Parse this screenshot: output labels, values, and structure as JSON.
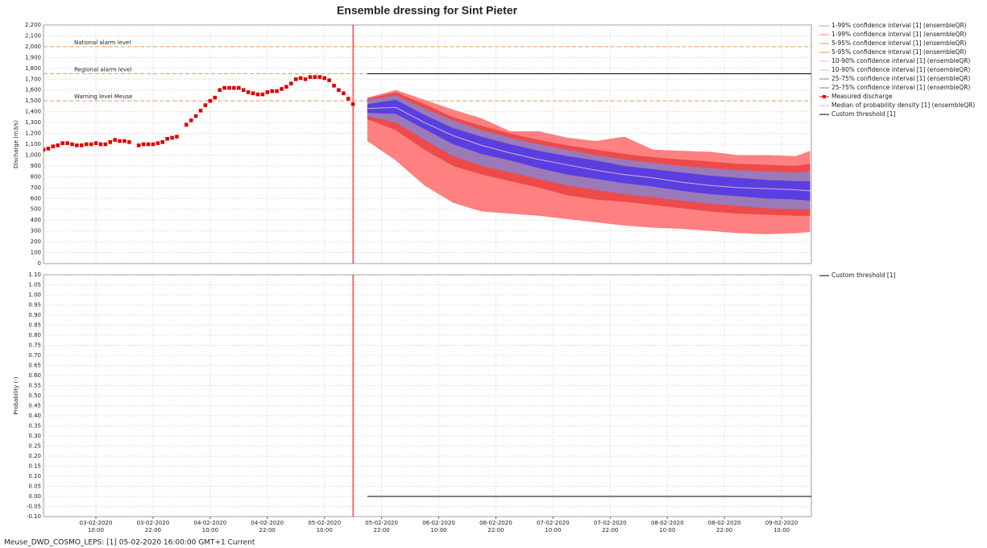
{
  "chart_data": [
    {
      "type": "line",
      "title": "Ensemble dressing for Sint Pieter",
      "ylabel": "Discharge (m3/s)",
      "xlim": [
        "2020-02-02T23:00",
        "2020-02-09T16:15"
      ],
      "ylim": [
        0,
        2200
      ],
      "yticks": [
        0,
        100,
        200,
        300,
        400,
        500,
        600,
        700,
        800,
        900,
        {
          "value": 1000,
          "label": "1,000"
        },
        {
          "value": 1100,
          "label": "1,100"
        },
        {
          "value": 1200,
          "label": "1,200"
        },
        {
          "value": 1300,
          "label": "1,300"
        },
        {
          "value": 1400,
          "label": "1,400"
        },
        {
          "value": 1500,
          "label": "1,500"
        },
        {
          "value": 1600,
          "label": "1,600"
        },
        {
          "value": 1700,
          "label": "1,700"
        },
        {
          "value": 1800,
          "label": "1,800"
        },
        {
          "value": 1900,
          "label": "1,900"
        },
        {
          "value": 2000,
          "label": "2,000"
        },
        {
          "value": 2100,
          "label": "2,100"
        },
        {
          "value": 2200,
          "label": "2,200"
        }
      ],
      "grid": true,
      "current_time": "2020-02-05T16:00",
      "thresholds": [
        {
          "label": "National alarm level",
          "value": 2000,
          "color": "#f0a050"
        },
        {
          "label": "Regional alarm level",
          "value": 1750,
          "color": "#f0a050"
        },
        {
          "label": "Warning level Meuse",
          "value": 1500,
          "color": "#f0a050"
        }
      ],
      "x": [
        "2020-02-05T19:00",
        "2020-02-06T01:00",
        "2020-02-06T07:00",
        "2020-02-06T13:00",
        "2020-02-06T19:00",
        "2020-02-07T01:00",
        "2020-02-07T07:00",
        "2020-02-07T13:00",
        "2020-02-07T19:00",
        "2020-02-08T01:00",
        "2020-02-08T07:00",
        "2020-02-08T13:00",
        "2020-02-08T19:00",
        "2020-02-09T01:00",
        "2020-02-09T07:00",
        "2020-02-09T13:00",
        "2020-02-09T16:00"
      ],
      "series": [
        {
          "name": "1-99% confidence interval [1]  (ensembleQR)",
          "color": "#ff8080",
          "fill": "#ff8080",
          "values": [
            1530,
            1600,
            1510,
            1420,
            1340,
            1220,
            1220,
            1160,
            1130,
            1170,
            1050,
            1040,
            1030,
            1000,
            1000,
            990,
            1040
          ]
        },
        {
          "name": "1-99% confidence interval [1]  (ensembleQR)",
          "color": "#ff8080",
          "values": [
            1130,
            950,
            720,
            560,
            480,
            460,
            440,
            410,
            380,
            350,
            330,
            320,
            300,
            280,
            270,
            280,
            290
          ]
        },
        {
          "name": "5-95% confidence interval [1]  (ensembleQR)",
          "color": "#f09050",
          "fill": "#ee4a4a",
          "values": [
            1520,
            1580,
            1470,
            1350,
            1270,
            1200,
            1140,
            1090,
            1050,
            1010,
            980,
            960,
            940,
            920,
            910,
            900,
            920
          ]
        },
        {
          "name": "5-95% confidence interval [1]  (ensembleQR)",
          "color": "#f09050",
          "values": [
            1330,
            1230,
            1050,
            900,
            820,
            760,
            700,
            630,
            590,
            570,
            540,
            510,
            480,
            460,
            450,
            440,
            440
          ]
        },
        {
          "name": "10-90% confidence interval [1]  (ensembleQR)",
          "color": "#c0c0d0",
          "fill": "#9a7ab8",
          "values": [
            1510,
            1550,
            1430,
            1320,
            1230,
            1160,
            1100,
            1050,
            1000,
            960,
            930,
            900,
            880,
            860,
            850,
            840,
            850
          ]
        },
        {
          "name": "10-90% confidence interval [1]  (ensembleQR)",
          "color": "#c0c0d0",
          "values": [
            1360,
            1300,
            1140,
            990,
            900,
            840,
            780,
            720,
            680,
            640,
            610,
            580,
            550,
            530,
            510,
            500,
            500
          ]
        },
        {
          "name": "25-75% confidence interval [1]  (ensembleQR)",
          "color": "#8080c0",
          "fill": "#5b3ee0",
          "values": [
            1470,
            1510,
            1370,
            1250,
            1170,
            1100,
            1040,
            990,
            950,
            900,
            870,
            840,
            810,
            790,
            770,
            760,
            760
          ]
        },
        {
          "name": "25-75% confidence interval [1]  (ensembleQR)",
          "color": "#8080c0",
          "values": [
            1390,
            1380,
            1240,
            1100,
            1010,
            950,
            880,
            820,
            780,
            740,
            710,
            670,
            640,
            620,
            600,
            590,
            580
          ]
        },
        {
          "name": "Measured discharge",
          "color": "#e00000",
          "marker": "square",
          "x": [
            "2020-02-02T23:00",
            "2020-02-03T00:00",
            "2020-02-03T01:00",
            "2020-02-03T02:00",
            "2020-02-03T03:00",
            "2020-02-03T04:00",
            "2020-02-03T05:00",
            "2020-02-03T06:00",
            "2020-02-03T07:00",
            "2020-02-03T08:00",
            "2020-02-03T09:00",
            "2020-02-03T10:00",
            "2020-02-03T11:00",
            "2020-02-03T12:00",
            "2020-02-03T13:00",
            "2020-02-03T14:00",
            "2020-02-03T15:00",
            "2020-02-03T16:00",
            "2020-02-03T17:00",
            "2020-02-03T18:00",
            "2020-02-03T19:00",
            "2020-02-03T20:00",
            "2020-02-03T21:00",
            "2020-02-03T22:00",
            "2020-02-03T23:00",
            "2020-02-04T00:00",
            "2020-02-04T01:00",
            "2020-02-04T02:00",
            "2020-02-04T03:00",
            "2020-02-04T04:00",
            "2020-02-04T05:00",
            "2020-02-04T06:00",
            "2020-02-04T07:00",
            "2020-02-04T08:00",
            "2020-02-04T09:00",
            "2020-02-04T10:00",
            "2020-02-04T11:00",
            "2020-02-04T12:00",
            "2020-02-04T13:00",
            "2020-02-04T14:00",
            "2020-02-04T15:00",
            "2020-02-04T16:00",
            "2020-02-04T17:00",
            "2020-02-04T18:00",
            "2020-02-04T19:00",
            "2020-02-04T20:00",
            "2020-02-04T21:00",
            "2020-02-04T22:00",
            "2020-02-04T23:00",
            "2020-02-05T00:00",
            "2020-02-05T01:00",
            "2020-02-05T02:00",
            "2020-02-05T03:00",
            "2020-02-05T04:00",
            "2020-02-05T05:00",
            "2020-02-05T06:00",
            "2020-02-05T07:00",
            "2020-02-05T08:00",
            "2020-02-05T09:00",
            "2020-02-05T10:00",
            "2020-02-05T11:00",
            "2020-02-05T12:00",
            "2020-02-05T13:00",
            "2020-02-05T14:00",
            "2020-02-05T15:00",
            "2020-02-05T16:00"
          ],
          "values": [
            1050,
            1060,
            1080,
            1090,
            1110,
            1110,
            1100,
            1090,
            1090,
            1100,
            1100,
            1110,
            1100,
            1100,
            1120,
            1140,
            1130,
            1130,
            1120,
            null,
            1090,
            1100,
            1100,
            1100,
            1110,
            1120,
            1150,
            1160,
            1170,
            null,
            1280,
            1320,
            1360,
            1410,
            1460,
            1500,
            1530,
            1600,
            1620,
            1620,
            1620,
            1620,
            1600,
            1580,
            1570,
            1560,
            1560,
            1580,
            1590,
            1590,
            1610,
            1630,
            1660,
            1700,
            1710,
            1700,
            1720,
            1720,
            1720,
            1710,
            1690,
            1640,
            1600,
            1570,
            1520,
            1470
          ]
        },
        {
          "name": "Median of probability density [1]  (ensembleQR)",
          "color": "#c8b8d8",
          "values": [
            1430,
            1440,
            1300,
            1180,
            1090,
            1020,
            960,
            910,
            860,
            820,
            790,
            750,
            720,
            700,
            690,
            680,
            670
          ]
        },
        {
          "name": "Custom threshold [1]",
          "color": "#000000",
          "x": [
            "2020-02-05T19:00",
            "2020-02-09T16:15"
          ],
          "values": [
            1750,
            1750
          ]
        }
      ]
    },
    {
      "type": "line",
      "ylabel": "Probability (-)",
      "xlim": [
        "2020-02-02T23:00",
        "2020-02-09T16:15"
      ],
      "ylim": [
        -0.1,
        1.1
      ],
      "yticks": [
        {
          "value": -0.1,
          "label": "-0.10"
        },
        -0.05,
        {
          "value": 0,
          "label": "0.00"
        },
        0.05,
        {
          "value": 0.1,
          "label": "0.10"
        },
        0.15,
        {
          "value": 0.2,
          "label": "0.20"
        },
        0.25,
        {
          "value": 0.3,
          "label": "0.30"
        },
        0.35,
        {
          "value": 0.4,
          "label": "0.40"
        },
        0.45,
        {
          "value": 0.5,
          "label": "0.50"
        },
        0.55,
        {
          "value": 0.6,
          "label": "0.60"
        },
        0.65,
        {
          "value": 0.7,
          "label": "0.70"
        },
        0.75,
        {
          "value": 0.8,
          "label": "0.80"
        },
        0.85,
        {
          "value": 0.9,
          "label": "0.90"
        },
        0.95,
        {
          "value": 1,
          "label": "1.00"
        },
        1.05,
        {
          "value": 1.1,
          "label": "1.10"
        }
      ],
      "xticks": [
        {
          "value": "2020-02-03T10:00",
          "label": "03-02-2020 10:00"
        },
        {
          "value": "2020-02-03T22:00",
          "label": "03-02-2020 22:00"
        },
        {
          "value": "2020-02-04T10:00",
          "label": "04-02-2020 10:00"
        },
        {
          "value": "2020-02-04T22:00",
          "label": "04-02-2020 22:00"
        },
        {
          "value": "2020-02-05T10:00",
          "label": "05-02-2020 10:00"
        },
        {
          "value": "2020-02-05T22:00",
          "label": "05-02-2020 22:00"
        },
        {
          "value": "2020-02-06T10:00",
          "label": "06-02-2020 10:00"
        },
        {
          "value": "2020-02-06T22:00",
          "label": "06-02-2020 22:00"
        },
        {
          "value": "2020-02-07T10:00",
          "label": "07-02-2020 10:00"
        },
        {
          "value": "2020-02-07T22:00",
          "label": "07-02-2020 22:00"
        },
        {
          "value": "2020-02-08T10:00",
          "label": "08-02-2020 10:00"
        },
        {
          "value": "2020-02-08T22:00",
          "label": "08-02-2020 22:00"
        },
        {
          "value": "2020-02-09T10:00",
          "label": "09-02-2020 10:00"
        }
      ],
      "grid": true,
      "current_time": "2020-02-05T16:00",
      "series": [
        {
          "name": "Custom threshold [1]",
          "color": "#000000",
          "x": [
            "2020-02-05T19:00",
            "2020-02-09T16:15"
          ],
          "values": [
            0,
            0
          ]
        }
      ]
    }
  ],
  "footer": "Meuse_DWD_COSMO_LEPS: [1] 05-02-2020 16:00:00 GMT+1 Current"
}
